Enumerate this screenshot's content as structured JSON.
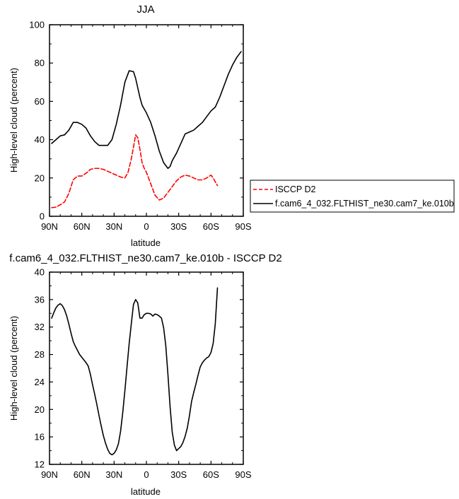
{
  "chart_data": [
    {
      "type": "line",
      "title": "JJA",
      "xlabel": "latitude",
      "ylabel": "High-level cloud (percent)",
      "xlim": [
        90,
        -90
      ],
      "ylim": [
        0,
        100
      ],
      "x_ticks": [
        90,
        60,
        30,
        0,
        -30,
        -60,
        -90
      ],
      "x_tick_labels": [
        "90N",
        "60N",
        "30N",
        "0",
        "30S",
        "60S",
        "90S"
      ],
      "y_ticks": [
        0,
        20,
        40,
        60,
        80,
        100
      ],
      "y_tick_labels": [
        "0",
        "20",
        "40",
        "60",
        "80",
        "100"
      ],
      "legend_placement": "right",
      "series": [
        {
          "name": "ISCCP D2",
          "color": "#ff0000",
          "dash": "dashed",
          "x": [
            88,
            84,
            80,
            76,
            72,
            68,
            64,
            60,
            56,
            52,
            48,
            44,
            40,
            36,
            32,
            28,
            24,
            20,
            17,
            14,
            12,
            10,
            8,
            6,
            4,
            2,
            0,
            -4,
            -8,
            -12,
            -16,
            -20,
            -24,
            -28,
            -32,
            -36,
            -40,
            -44,
            -48,
            -52,
            -56,
            -60,
            -62,
            -64,
            -66
          ],
          "y": [
            4.5,
            4.8,
            6,
            7.5,
            12,
            19,
            21,
            21,
            22.5,
            24.5,
            25,
            25,
            24.5,
            23.5,
            22.5,
            21.5,
            20.5,
            20,
            23,
            30,
            36,
            42.5,
            41,
            35,
            28,
            25,
            23,
            17,
            11,
            8.5,
            9.5,
            12.5,
            15.5,
            18.5,
            20.5,
            21.5,
            21,
            20,
            19,
            19,
            20,
            21.5,
            20,
            18,
            16
          ]
        },
        {
          "name": "f.cam6_4_032.FLTHIST_ne30.cam7_ke.010b",
          "color": "#000000",
          "dash": "solid",
          "x": [
            88,
            84,
            80,
            76,
            72,
            68,
            64,
            60,
            56,
            52,
            48,
            44,
            40,
            36,
            32,
            28,
            24,
            20,
            16,
            12,
            10,
            8,
            6,
            4,
            2,
            0,
            -4,
            -8,
            -12,
            -16,
            -20,
            -22,
            -24,
            -28,
            -32,
            -36,
            -40,
            -44,
            -48,
            -52,
            -56,
            -60,
            -64,
            -68,
            -72,
            -76,
            -80,
            -84,
            -88
          ],
          "y": [
            38,
            40,
            42,
            42.5,
            45,
            49,
            49,
            48,
            46,
            42,
            39,
            37,
            37,
            37,
            40,
            48,
            58,
            70,
            76,
            75.5,
            72,
            67,
            62,
            58,
            56,
            54,
            49,
            42,
            34,
            28,
            25,
            26,
            29,
            33,
            38,
            43,
            44,
            45,
            47,
            49,
            52,
            55,
            57,
            62,
            68,
            74,
            79,
            83,
            86
          ]
        }
      ]
    },
    {
      "type": "line",
      "title": "f.cam6_4_032.FLTHIST_ne30.cam7_ke.010b - ISCCP D2",
      "xlabel": "latitude",
      "ylabel": "High-level cloud (percent)",
      "xlim": [
        90,
        -90
      ],
      "ylim": [
        12,
        40
      ],
      "x_ticks": [
        90,
        60,
        30,
        0,
        -30,
        -60,
        -90
      ],
      "x_tick_labels": [
        "90N",
        "60N",
        "30N",
        "0",
        "30S",
        "60S",
        "90S"
      ],
      "y_ticks": [
        12,
        16,
        20,
        24,
        28,
        32,
        36,
        40
      ],
      "y_tick_labels": [
        "12",
        "16",
        "20",
        "24",
        "28",
        "32",
        "36",
        "40"
      ],
      "series": [
        {
          "color": "#000000",
          "dash": "solid",
          "x": [
            88,
            86,
            84,
            82,
            80,
            78,
            76,
            74,
            72,
            70,
            68,
            66,
            64,
            62,
            60,
            58,
            56,
            54,
            52,
            50,
            48,
            46,
            44,
            42,
            40,
            38,
            36,
            34,
            32,
            30,
            28,
            26,
            24,
            22,
            20,
            18,
            16,
            14,
            12,
            10,
            8,
            6,
            4,
            2,
            0,
            -2,
            -4,
            -6,
            -8,
            -10,
            -12,
            -14,
            -16,
            -18,
            -20,
            -22,
            -24,
            -26,
            -28,
            -30,
            -32,
            -34,
            -36,
            -38,
            -40,
            -42,
            -44,
            -46,
            -48,
            -50,
            -52,
            -54,
            -56,
            -58,
            -60,
            -62,
            -64,
            -66
          ],
          "y": [
            33.3,
            34.1,
            34.8,
            35.2,
            35.4,
            35.1,
            34.5,
            33.6,
            32.4,
            31.1,
            29.9,
            29.2,
            28.6,
            28,
            27.6,
            27.2,
            26.8,
            26.3,
            25.1,
            23.6,
            22.2,
            20.7,
            19.1,
            17.6,
            16.2,
            15.1,
            14.2,
            13.6,
            13.4,
            13.6,
            14.1,
            15,
            16.8,
            19.5,
            22.7,
            26.2,
            29.6,
            32.5,
            35.3,
            36,
            35.5,
            33.3,
            33.3,
            33.8,
            34,
            34,
            33.9,
            33.6,
            33.9,
            33.8,
            33.6,
            33.3,
            31.9,
            29.3,
            25.1,
            20.4,
            16.7,
            14.8,
            14,
            14.3,
            14.6,
            15.2,
            16.1,
            17.3,
            19.1,
            21.2,
            22.5,
            23.7,
            25,
            26.2,
            26.8,
            27.2,
            27.5,
            27.7,
            28.3,
            29.6,
            32.5,
            37.7
          ]
        }
      ]
    }
  ]
}
